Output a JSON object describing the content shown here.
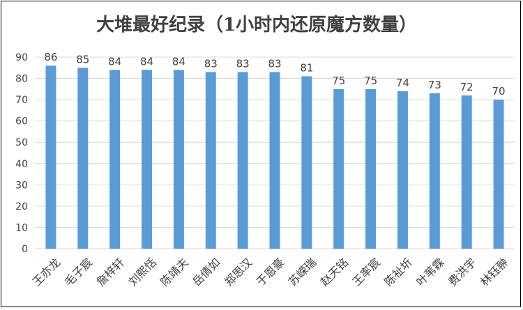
{
  "chart_data": {
    "type": "bar",
    "title": "大堆最好纪录（1小时内还原魔方数量）",
    "xlabel": "",
    "ylabel": "",
    "ylim": [
      0,
      90
    ],
    "yticks": [
      0,
      10,
      20,
      30,
      40,
      50,
      60,
      70,
      80,
      90
    ],
    "grid": true,
    "legend": "none",
    "data_labels": true,
    "categories": [
      "王亦龙",
      "毛子宸",
      "詹梓轩",
      "刘熙恬",
      "陈靖夫",
      "岳倩如",
      "郑思汉",
      "于恩豪",
      "苏嵘瑞",
      "赵天铭",
      "王率宸",
      "陈祉圻",
      "叶苇霖",
      "费洪宇",
      "林钰翀"
    ],
    "series": [
      {
        "values": [
          86,
          85,
          84,
          84,
          84,
          83,
          83,
          83,
          81,
          75,
          75,
          74,
          73,
          72,
          70
        ],
        "color": "#5b9bd5"
      }
    ],
    "colors": {
      "bar": "#5b9bd5",
      "grid": "#d9d9d9",
      "text": "#404040",
      "title": "#404040"
    }
  }
}
